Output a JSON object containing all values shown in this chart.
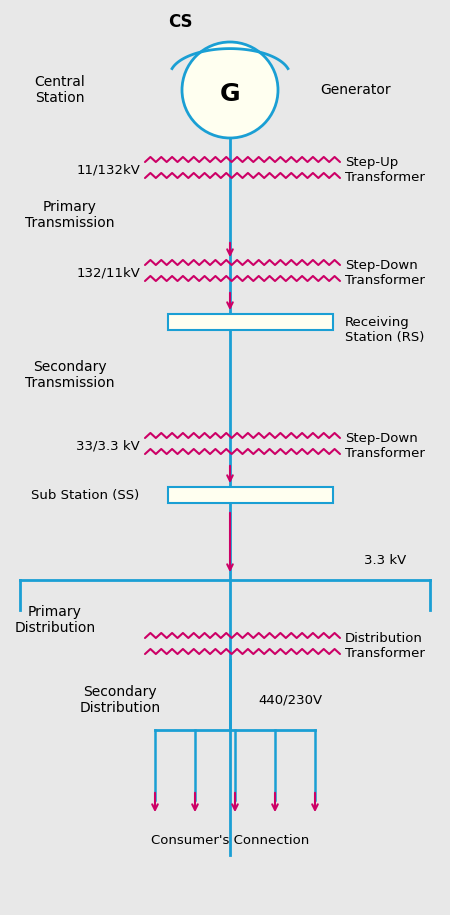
{
  "bg_color": "#e8e8e8",
  "line_color": "#1a9fd4",
  "zigzag_color": "#cc0066",
  "text_color": "#000000",
  "box_fill": "#fffff0",
  "box_edge": "#1a9fd4",
  "gen_fill": "#fffff0",
  "gen_edge": "#1a9fd4",
  "figsize": [
    4.5,
    9.15
  ],
  "dpi": 100,
  "labels": {
    "cs": "CS",
    "G": "G",
    "central_station": "Central\nStation",
    "generator": "Generator",
    "kv1": "11/132kV",
    "stepup": "Step-Up\nTransformer",
    "primary_tx": "Primary\nTransmission",
    "kv2": "132/11kV",
    "stepdown1": "Step-Down\nTransformer",
    "receiving": "Receiving\nStation (RS)",
    "secondary_tx": "Secondary\nTransmission",
    "kv3": "33/3.3 kV",
    "stepdown2": "Step-Down\nTransformer",
    "substation": "Sub Station (SS)",
    "primary_dist": "Primary\nDistribution",
    "kv4": "3.3 kV",
    "dist_tx": "Distribution\nTransformer",
    "secondary_dist": "Secondary\nDistribution",
    "kv5": "440/230V",
    "consumer": "Consumer's Connection"
  }
}
